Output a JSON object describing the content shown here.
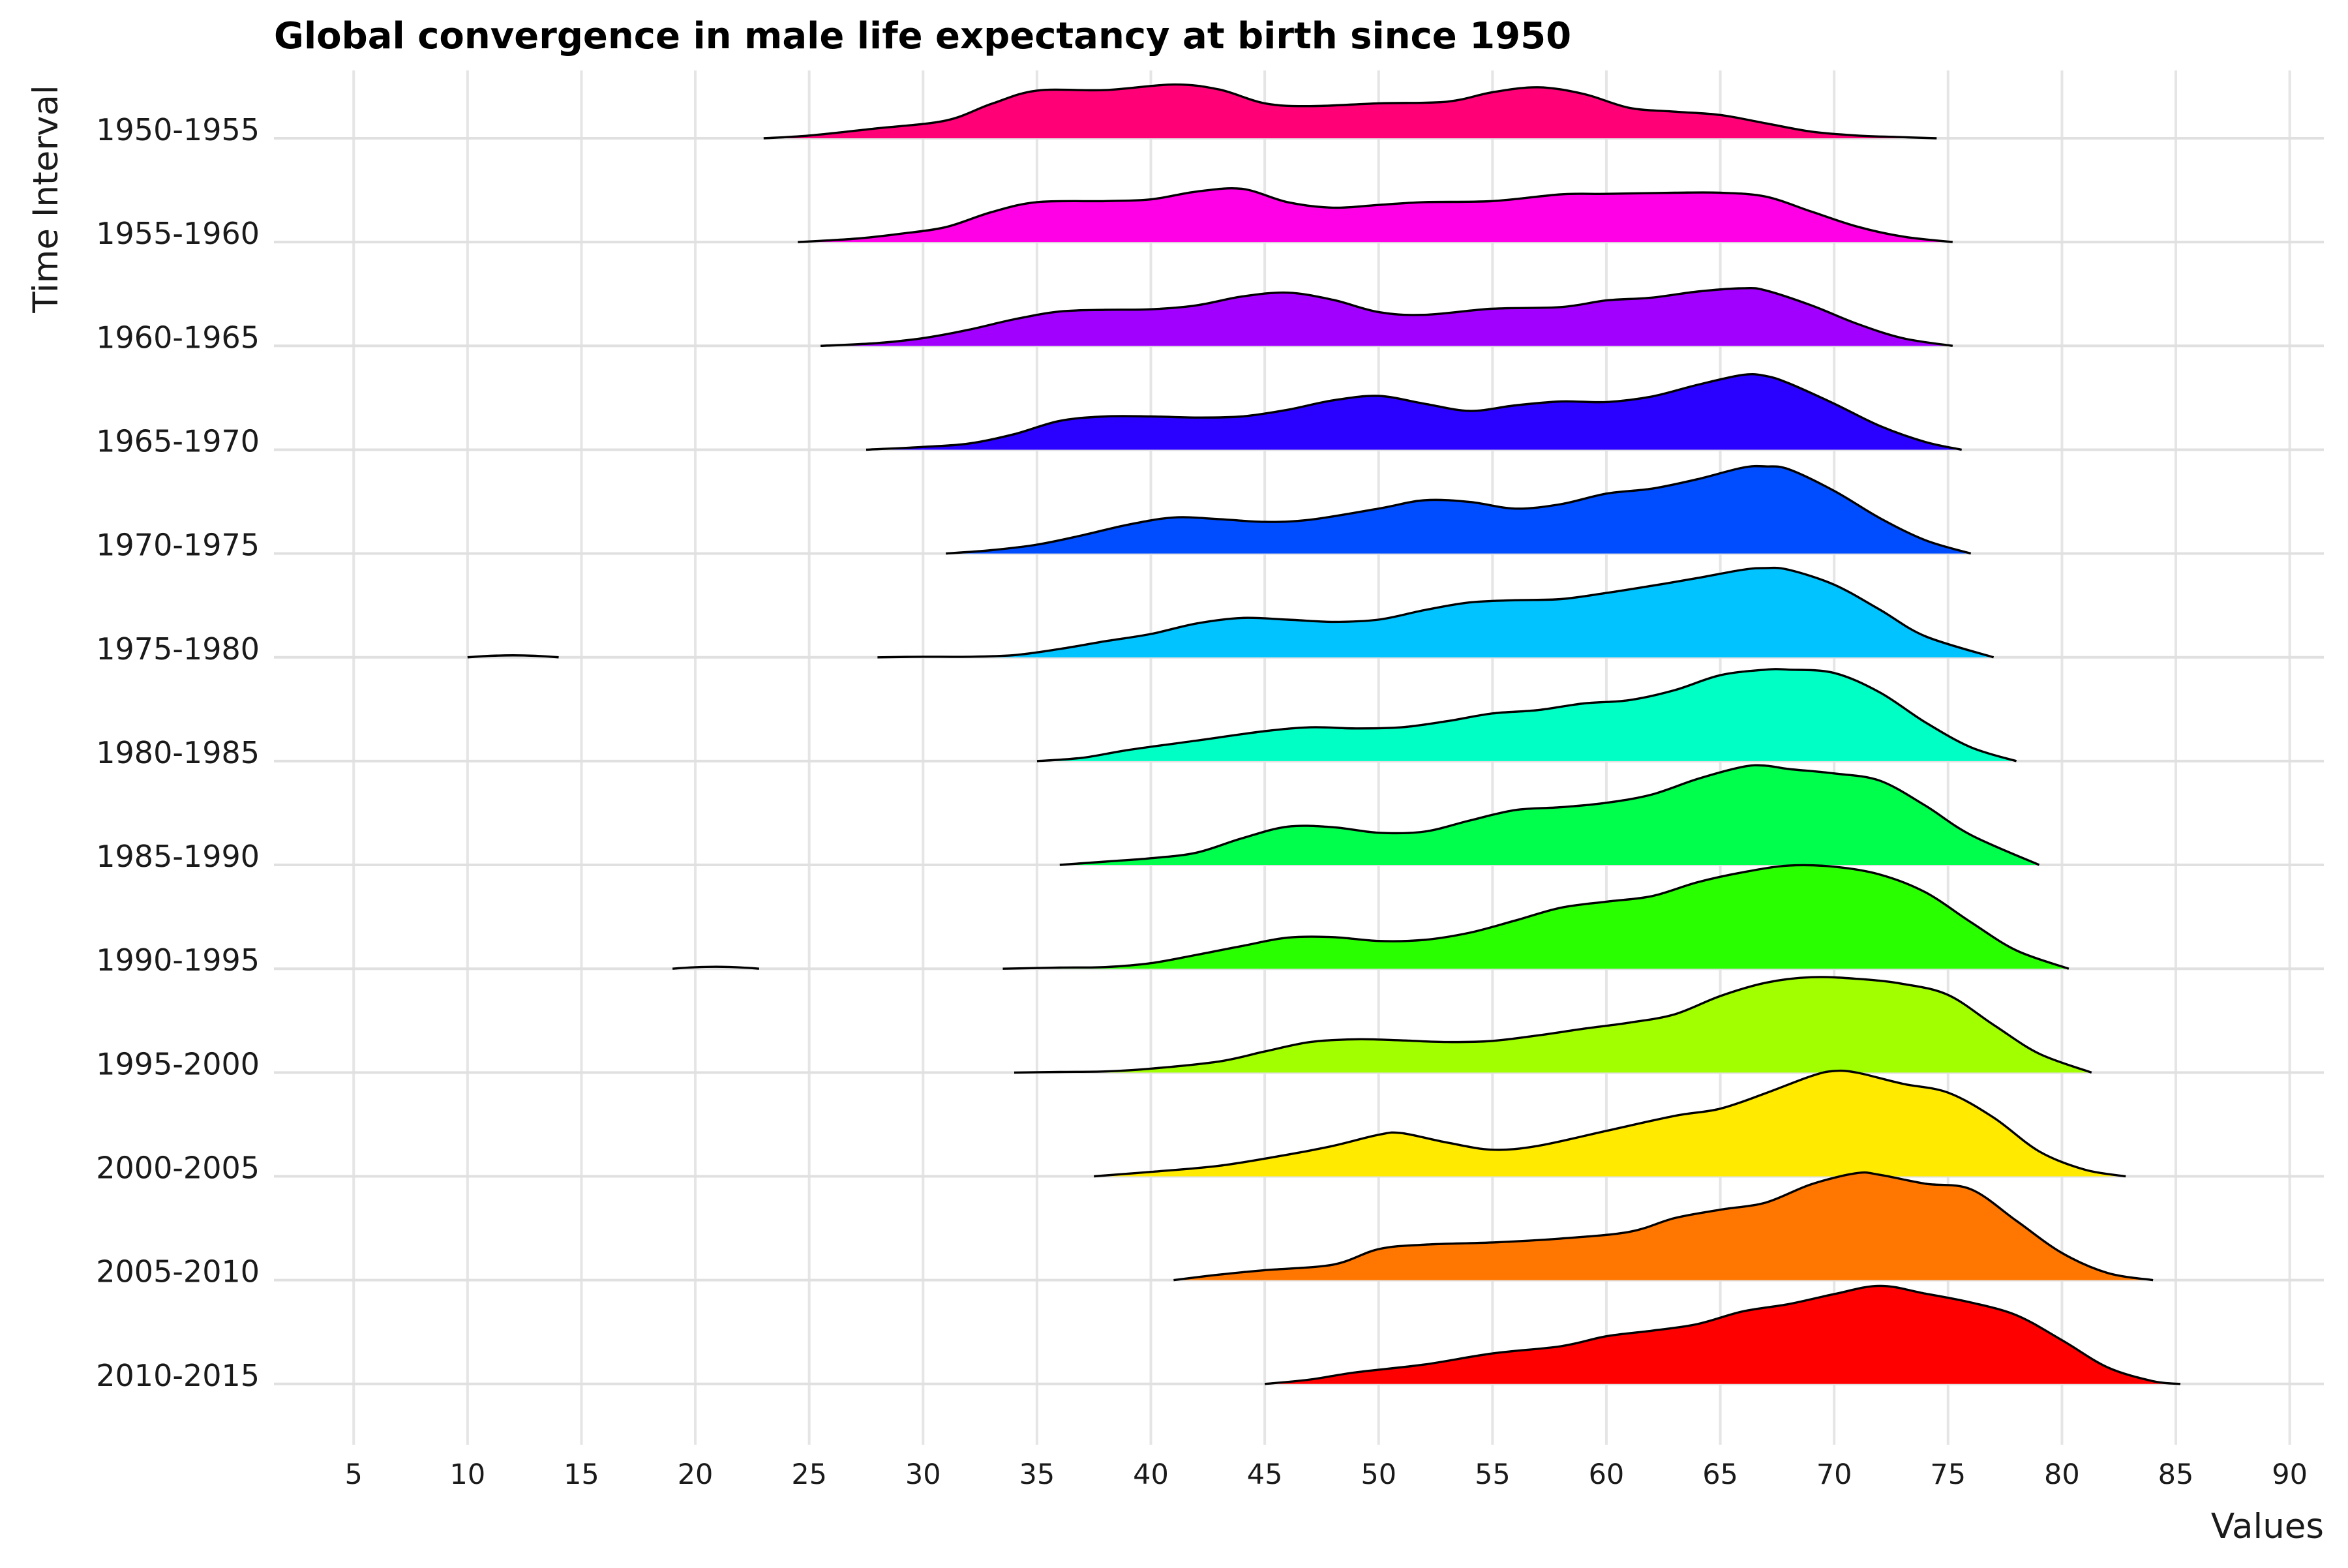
{
  "chart_data": {
    "type": "area",
    "subtype": "ridgeline-density",
    "title": "Global convergence in male life expectancy at birth since 1950",
    "xlabel": "Values",
    "ylabel": "Time Interval",
    "xlim": [
      1.5,
      91.5
    ],
    "x_ticks": [
      5,
      10,
      15,
      20,
      25,
      30,
      35,
      40,
      45,
      50,
      55,
      60,
      65,
      70,
      75,
      80,
      85,
      90
    ],
    "grid": true,
    "legend": "none",
    "value_scale": "relative density (1.0 = tallest ridge height)",
    "series": [
      {
        "name": "1950-1955",
        "color": "#ff0077",
        "points": [
          [
            23,
            0
          ],
          [
            25,
            0.05
          ],
          [
            28,
            0.18
          ],
          [
            31,
            0.32
          ],
          [
            33,
            0.62
          ],
          [
            35,
            0.86
          ],
          [
            38,
            0.87
          ],
          [
            41,
            0.97
          ],
          [
            43,
            0.88
          ],
          [
            45,
            0.63
          ],
          [
            47,
            0.58
          ],
          [
            50,
            0.63
          ],
          [
            53,
            0.66
          ],
          [
            55,
            0.83
          ],
          [
            57,
            0.92
          ],
          [
            59,
            0.8
          ],
          [
            61,
            0.55
          ],
          [
            63,
            0.48
          ],
          [
            65,
            0.42
          ],
          [
            67,
            0.27
          ],
          [
            69,
            0.12
          ],
          [
            71,
            0.05
          ],
          [
            73,
            0.02
          ],
          [
            74.5,
            0
          ]
        ]
      },
      {
        "name": "1955-1960",
        "color": "#ff00e6",
        "points": [
          [
            24.5,
            0
          ],
          [
            27,
            0.06
          ],
          [
            29,
            0.15
          ],
          [
            31,
            0.27
          ],
          [
            33,
            0.54
          ],
          [
            35,
            0.72
          ],
          [
            38,
            0.74
          ],
          [
            40,
            0.77
          ],
          [
            42,
            0.91
          ],
          [
            44,
            0.96
          ],
          [
            46,
            0.72
          ],
          [
            48,
            0.62
          ],
          [
            50,
            0.67
          ],
          [
            52,
            0.72
          ],
          [
            55,
            0.74
          ],
          [
            58,
            0.86
          ],
          [
            60,
            0.87
          ],
          [
            63,
            0.89
          ],
          [
            65,
            0.89
          ],
          [
            67,
            0.82
          ],
          [
            69,
            0.55
          ],
          [
            71,
            0.28
          ],
          [
            73,
            0.1
          ],
          [
            75.2,
            0
          ]
        ]
      },
      {
        "name": "1960-1965",
        "color": "#a100ff",
        "points": [
          [
            25.5,
            0
          ],
          [
            28,
            0.05
          ],
          [
            30,
            0.14
          ],
          [
            32,
            0.29
          ],
          [
            34,
            0.48
          ],
          [
            36,
            0.62
          ],
          [
            38,
            0.65
          ],
          [
            40,
            0.66
          ],
          [
            42,
            0.73
          ],
          [
            44,
            0.89
          ],
          [
            46,
            0.96
          ],
          [
            48,
            0.83
          ],
          [
            50,
            0.61
          ],
          [
            52,
            0.56
          ],
          [
            55,
            0.67
          ],
          [
            58,
            0.7
          ],
          [
            60,
            0.82
          ],
          [
            62,
            0.87
          ],
          [
            64,
            0.98
          ],
          [
            66,
            1.04
          ],
          [
            67,
            1.0
          ],
          [
            69,
            0.73
          ],
          [
            71,
            0.4
          ],
          [
            73,
            0.14
          ],
          [
            75.2,
            0
          ]
        ]
      },
      {
        "name": "1965-1970",
        "color": "#2a00ff",
        "points": [
          [
            27.5,
            0
          ],
          [
            30,
            0.05
          ],
          [
            32,
            0.11
          ],
          [
            34,
            0.28
          ],
          [
            36,
            0.52
          ],
          [
            38,
            0.6
          ],
          [
            40,
            0.6
          ],
          [
            42,
            0.58
          ],
          [
            44,
            0.6
          ],
          [
            46,
            0.72
          ],
          [
            48,
            0.89
          ],
          [
            50,
            0.97
          ],
          [
            52,
            0.83
          ],
          [
            54,
            0.7
          ],
          [
            56,
            0.8
          ],
          [
            58,
            0.87
          ],
          [
            60,
            0.86
          ],
          [
            62,
            0.96
          ],
          [
            64,
            1.17
          ],
          [
            66,
            1.35
          ],
          [
            67,
            1.33
          ],
          [
            68,
            1.2
          ],
          [
            70,
            0.83
          ],
          [
            72,
            0.43
          ],
          [
            74,
            0.14
          ],
          [
            75.6,
            0
          ]
        ]
      },
      {
        "name": "1970-1975",
        "color": "#004cff",
        "points": [
          [
            31,
            0
          ],
          [
            33,
            0.06
          ],
          [
            35,
            0.16
          ],
          [
            37,
            0.33
          ],
          [
            39,
            0.52
          ],
          [
            41,
            0.65
          ],
          [
            43,
            0.62
          ],
          [
            45,
            0.57
          ],
          [
            47,
            0.61
          ],
          [
            50,
            0.81
          ],
          [
            52,
            0.96
          ],
          [
            54,
            0.93
          ],
          [
            56,
            0.81
          ],
          [
            58,
            0.89
          ],
          [
            60,
            1.08
          ],
          [
            62,
            1.17
          ],
          [
            64,
            1.34
          ],
          [
            66,
            1.55
          ],
          [
            67,
            1.57
          ],
          [
            68,
            1.52
          ],
          [
            70,
            1.13
          ],
          [
            72,
            0.64
          ],
          [
            74,
            0.24
          ],
          [
            76,
            0
          ]
        ]
      },
      {
        "name": "1975-1980",
        "color": "#00c3ff",
        "points": [
          [
            28,
            0
          ],
          [
            30,
            0.01
          ],
          [
            32,
            0.01
          ],
          [
            34,
            0.04
          ],
          [
            36,
            0.15
          ],
          [
            38,
            0.29
          ],
          [
            40,
            0.42
          ],
          [
            42,
            0.61
          ],
          [
            44,
            0.71
          ],
          [
            46,
            0.68
          ],
          [
            48,
            0.64
          ],
          [
            50,
            0.68
          ],
          [
            52,
            0.85
          ],
          [
            54,
            0.99
          ],
          [
            56,
            1.03
          ],
          [
            58,
            1.05
          ],
          [
            60,
            1.16
          ],
          [
            62,
            1.29
          ],
          [
            64,
            1.43
          ],
          [
            66,
            1.58
          ],
          [
            67,
            1.61
          ],
          [
            68,
            1.58
          ],
          [
            70,
            1.31
          ],
          [
            72,
            0.86
          ],
          [
            74,
            0.38
          ],
          [
            77,
            0
          ]
        ]
      },
      {
        "name": "1980-1985",
        "color": "#00ffc5",
        "points": [
          [
            35,
            0
          ],
          [
            37,
            0.06
          ],
          [
            39,
            0.2
          ],
          [
            42,
            0.37
          ],
          [
            45,
            0.54
          ],
          [
            47,
            0.61
          ],
          [
            49,
            0.59
          ],
          [
            51,
            0.61
          ],
          [
            53,
            0.72
          ],
          [
            55,
            0.86
          ],
          [
            57,
            0.92
          ],
          [
            59,
            1.04
          ],
          [
            61,
            1.1
          ],
          [
            63,
            1.28
          ],
          [
            65,
            1.55
          ],
          [
            67,
            1.65
          ],
          [
            68,
            1.65
          ],
          [
            70,
            1.59
          ],
          [
            72,
            1.24
          ],
          [
            74,
            0.7
          ],
          [
            76,
            0.25
          ],
          [
            78,
            0
          ]
        ]
      },
      {
        "name": "1985-1990",
        "color": "#00ff4c",
        "points": [
          [
            36,
            0
          ],
          [
            38,
            0.06
          ],
          [
            40,
            0.12
          ],
          [
            42,
            0.22
          ],
          [
            44,
            0.48
          ],
          [
            46,
            0.69
          ],
          [
            48,
            0.68
          ],
          [
            50,
            0.58
          ],
          [
            52,
            0.6
          ],
          [
            54,
            0.8
          ],
          [
            56,
            0.99
          ],
          [
            58,
            1.04
          ],
          [
            60,
            1.12
          ],
          [
            62,
            1.27
          ],
          [
            64,
            1.55
          ],
          [
            66,
            1.77
          ],
          [
            67,
            1.79
          ],
          [
            68,
            1.73
          ],
          [
            70,
            1.65
          ],
          [
            72,
            1.52
          ],
          [
            74,
            1.07
          ],
          [
            76,
            0.54
          ],
          [
            79,
            0
          ]
        ]
      },
      {
        "name": "1990-1995",
        "color": "#2aff00",
        "points": [
          [
            33.5,
            0
          ],
          [
            36,
            0.02
          ],
          [
            38,
            0.03
          ],
          [
            40,
            0.1
          ],
          [
            42,
            0.25
          ],
          [
            44,
            0.41
          ],
          [
            46,
            0.56
          ],
          [
            48,
            0.57
          ],
          [
            50,
            0.5
          ],
          [
            52,
            0.52
          ],
          [
            54,
            0.65
          ],
          [
            56,
            0.87
          ],
          [
            58,
            1.1
          ],
          [
            60,
            1.21
          ],
          [
            62,
            1.31
          ],
          [
            64,
            1.56
          ],
          [
            66,
            1.74
          ],
          [
            68,
            1.86
          ],
          [
            70,
            1.84
          ],
          [
            72,
            1.7
          ],
          [
            74,
            1.38
          ],
          [
            76,
            0.84
          ],
          [
            78,
            0.33
          ],
          [
            80.3,
            0
          ]
        ]
      },
      {
        "name": "1995-2000",
        "color": "#a1ff00",
        "points": [
          [
            34,
            0
          ],
          [
            36,
            0.01
          ],
          [
            38,
            0.02
          ],
          [
            40,
            0.07
          ],
          [
            43,
            0.2
          ],
          [
            45,
            0.38
          ],
          [
            47,
            0.55
          ],
          [
            49,
            0.6
          ],
          [
            51,
            0.58
          ],
          [
            53,
            0.55
          ],
          [
            55,
            0.57
          ],
          [
            57,
            0.67
          ],
          [
            59,
            0.79
          ],
          [
            61,
            0.9
          ],
          [
            63,
            1.05
          ],
          [
            65,
            1.38
          ],
          [
            67,
            1.62
          ],
          [
            69,
            1.72
          ],
          [
            71,
            1.69
          ],
          [
            73,
            1.6
          ],
          [
            75,
            1.4
          ],
          [
            77,
            0.86
          ],
          [
            79,
            0.34
          ],
          [
            81.3,
            0
          ]
        ]
      },
      {
        "name": "2000-2005",
        "color": "#ffea00",
        "points": [
          [
            37.5,
            0
          ],
          [
            40,
            0.08
          ],
          [
            43,
            0.19
          ],
          [
            46,
            0.39
          ],
          [
            48,
            0.55
          ],
          [
            50,
            0.75
          ],
          [
            51,
            0.78
          ],
          [
            53,
            0.61
          ],
          [
            55,
            0.48
          ],
          [
            57,
            0.55
          ],
          [
            60,
            0.82
          ],
          [
            63,
            1.09
          ],
          [
            65,
            1.22
          ],
          [
            67,
            1.5
          ],
          [
            69,
            1.81
          ],
          [
            70,
            1.9
          ],
          [
            71,
            1.87
          ],
          [
            73,
            1.67
          ],
          [
            75,
            1.51
          ],
          [
            77,
            1.06
          ],
          [
            79,
            0.45
          ],
          [
            81,
            0.12
          ],
          [
            82.8,
            0
          ]
        ]
      },
      {
        "name": "2005-2010",
        "color": "#ff7700",
        "points": [
          [
            41,
            0
          ],
          [
            43,
            0.1
          ],
          [
            45,
            0.18
          ],
          [
            48,
            0.28
          ],
          [
            50,
            0.56
          ],
          [
            52,
            0.64
          ],
          [
            55,
            0.68
          ],
          [
            58,
            0.75
          ],
          [
            61,
            0.87
          ],
          [
            63,
            1.12
          ],
          [
            65,
            1.27
          ],
          [
            67,
            1.4
          ],
          [
            69,
            1.73
          ],
          [
            71,
            1.93
          ],
          [
            72,
            1.9
          ],
          [
            74,
            1.74
          ],
          [
            76,
            1.64
          ],
          [
            78,
            1.07
          ],
          [
            80,
            0.49
          ],
          [
            82,
            0.13
          ],
          [
            84,
            0
          ]
        ]
      },
      {
        "name": "2010-2015",
        "color": "#ff0000",
        "points": [
          [
            45,
            0
          ],
          [
            47,
            0.08
          ],
          [
            49,
            0.21
          ],
          [
            52,
            0.35
          ],
          [
            55,
            0.55
          ],
          [
            58,
            0.68
          ],
          [
            60,
            0.86
          ],
          [
            62,
            0.96
          ],
          [
            64,
            1.08
          ],
          [
            66,
            1.31
          ],
          [
            68,
            1.44
          ],
          [
            70,
            1.62
          ],
          [
            72,
            1.77
          ],
          [
            74,
            1.63
          ],
          [
            76,
            1.47
          ],
          [
            78,
            1.24
          ],
          [
            80,
            0.79
          ],
          [
            82,
            0.3
          ],
          [
            84,
            0.05
          ],
          [
            85.2,
            0
          ]
        ]
      }
    ],
    "outlier_blips": [
      {
        "series": "1975-1980",
        "x": [
          10,
          14
        ]
      },
      {
        "series": "1990-1995",
        "x": [
          19,
          22.8
        ]
      }
    ]
  }
}
